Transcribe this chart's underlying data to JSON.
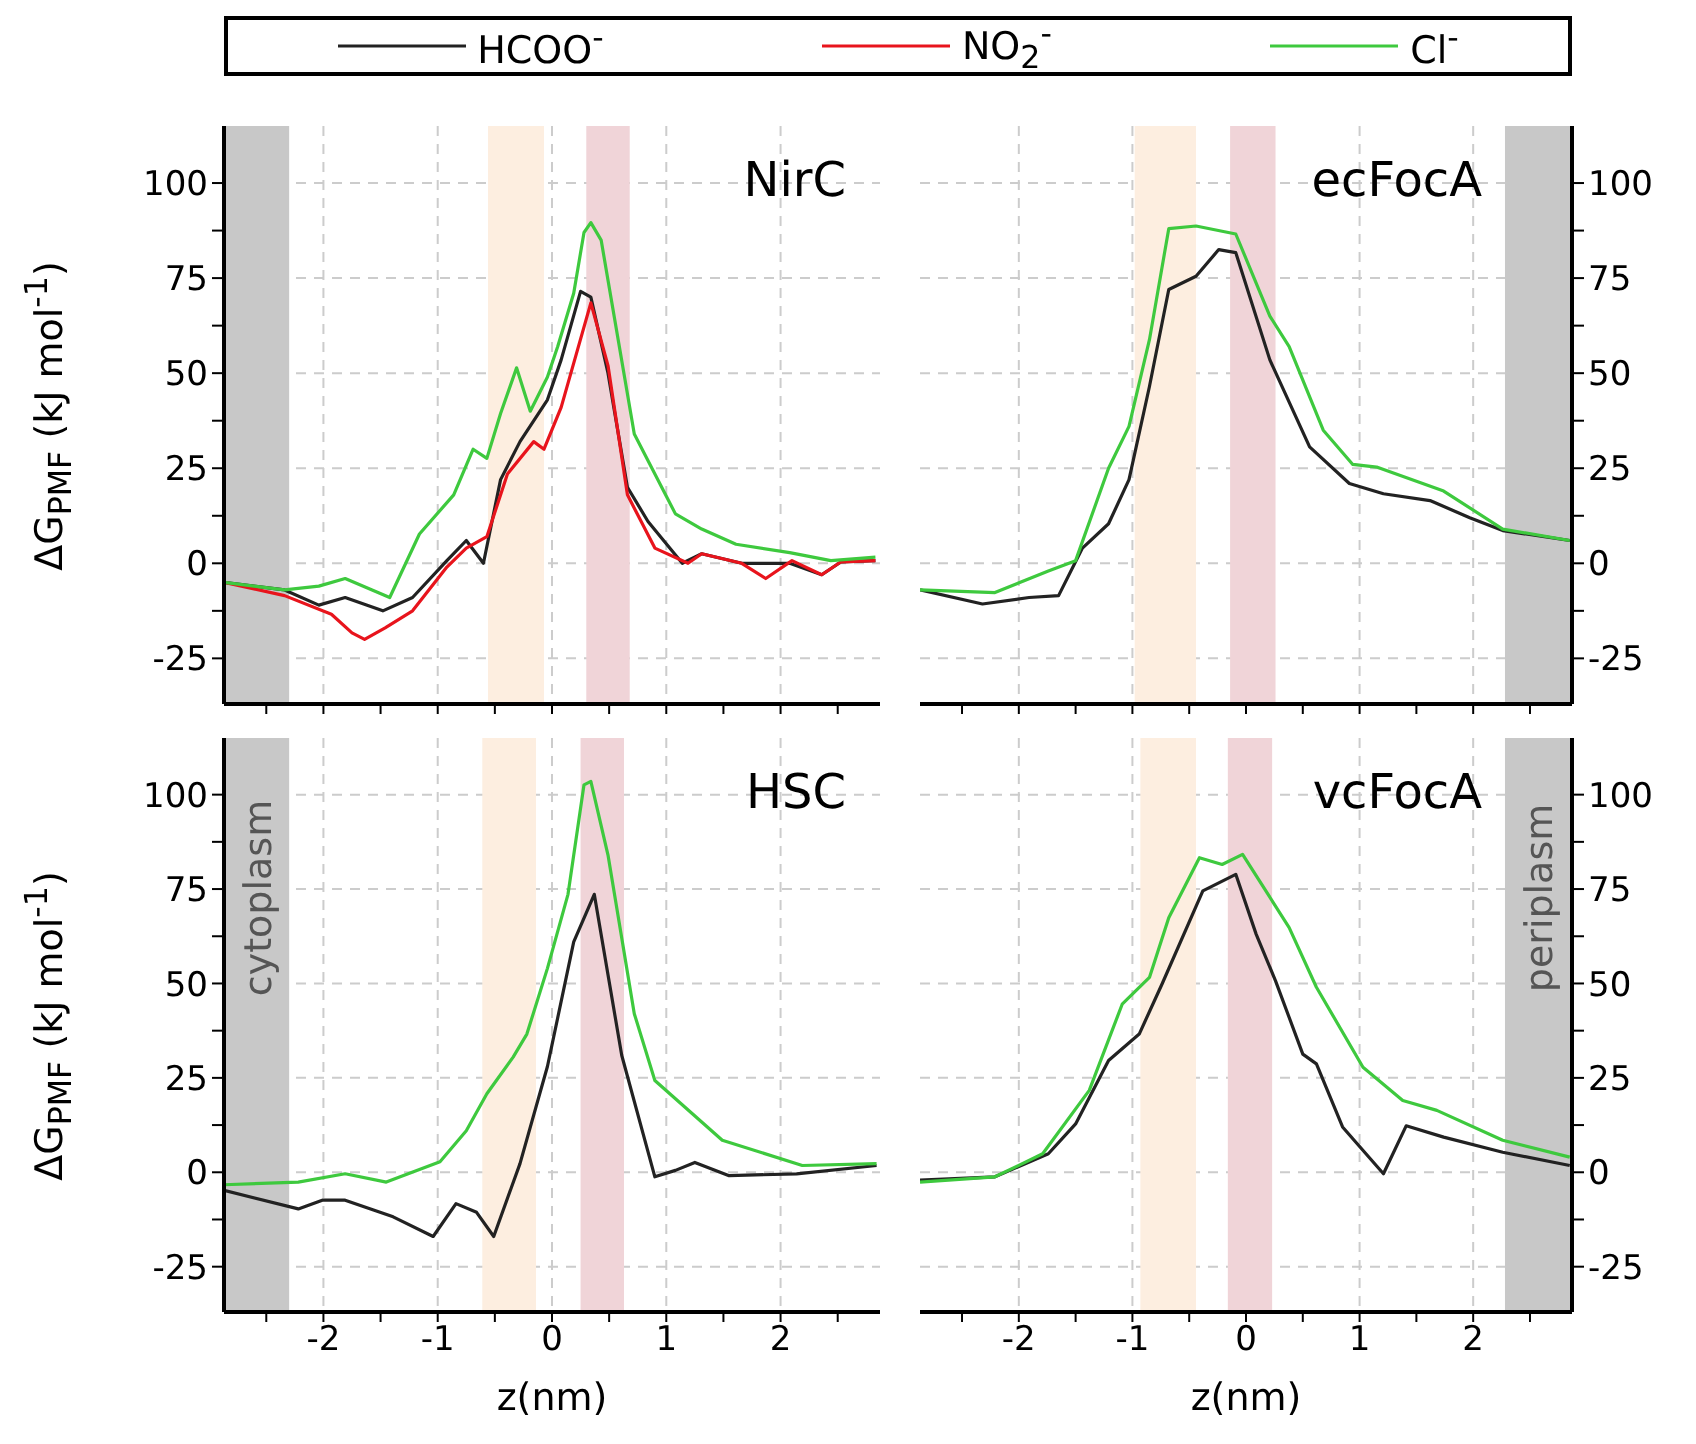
{
  "chart_data": [
    {
      "type": "line",
      "title": "NirC",
      "ylabel": "ΔG$_{PMF}$ (kJ mol$^{-1}$)",
      "legend": "top",
      "grid": true,
      "line_style": "solid",
      "marker": "none",
      "tick_labels": "y",
      "xlim": [
        -2.87,
        2.87
      ],
      "xticks": [
        {
          "value": -2.5,
          "label": null
        },
        -2,
        {
          "value": -1.5,
          "label": null
        },
        -1,
        {
          "value": -0.5,
          "label": null
        },
        0,
        {
          "value": 0.5,
          "label": null
        },
        1,
        {
          "value": 1.5,
          "label": null
        },
        2,
        {
          "value": 2.5,
          "label": null
        }
      ],
      "ylim": [
        -37,
        115
      ],
      "yticks": [
        -25,
        {
          "value": -12.5,
          "label": null
        },
        0,
        {
          "value": 12.5,
          "label": null
        },
        25,
        {
          "value": 37.5,
          "label": null
        },
        50,
        {
          "value": 62.5,
          "label": null
        },
        75,
        {
          "value": 87.5,
          "label": null
        },
        100
      ],
      "bands": [
        {
          "axis": "x",
          "from": -2.87,
          "to": -2.3,
          "color": "#c8c8c8"
        },
        {
          "axis": "x",
          "from": -0.56,
          "to": -0.07,
          "color": "#fdeee0"
        },
        {
          "axis": "x",
          "from": 0.3,
          "to": 0.68,
          "color": "#f0d4d8"
        }
      ],
      "series": [
        {
          "name": "HCOO$^{-}$",
          "color": "#222222",
          "x": [
            -2.87,
            -2.34,
            -2.04,
            -1.81,
            -1.48,
            -1.22,
            -0.92,
            -0.75,
            -0.6,
            -0.45,
            -0.28,
            -0.04,
            0.08,
            0.25,
            0.34,
            0.49,
            0.66,
            0.84,
            1.14,
            1.31,
            1.66,
            2.08,
            2.36,
            2.53,
            2.83
          ],
          "values": [
            -5,
            -7,
            -11,
            -9,
            -12.5,
            -9,
            0.7,
            6,
            0,
            22,
            32,
            43,
            53.5,
            71.5,
            70,
            50,
            20,
            11,
            0,
            2.5,
            0,
            0,
            -3,
            0.4,
            0.7
          ]
        },
        {
          "name": "NO$_{2}$$^{-}$",
          "color": "#e8141c",
          "x": [
            -2.87,
            -2.34,
            -1.93,
            -1.75,
            -1.64,
            -1.46,
            -1.22,
            -0.92,
            -0.75,
            -0.57,
            -0.39,
            -0.16,
            -0.07,
            0.08,
            0.34,
            0.49,
            0.66,
            0.9,
            1.19,
            1.31,
            1.66,
            1.87,
            2.1,
            2.36,
            2.53,
            2.83
          ],
          "values": [
            -5,
            -8.5,
            -13.4,
            -18.3,
            -20,
            -17,
            -12.5,
            -1,
            4,
            7,
            23.5,
            32,
            30,
            41,
            68.5,
            52,
            18,
            4,
            0,
            2.5,
            0,
            -4,
            0.7,
            -3,
            0.4,
            0.7
          ]
        },
        {
          "name": "Cl$^{-}$",
          "color": "#3ec93e",
          "x": [
            -2.87,
            -2.34,
            -2.04,
            -1.81,
            -1.42,
            -1.16,
            -0.86,
            -0.69,
            -0.57,
            -0.45,
            -0.31,
            -0.19,
            -0.04,
            0.05,
            0.19,
            0.28,
            0.34,
            0.43,
            0.72,
            1.08,
            1.31,
            1.61,
            2.08,
            2.44,
            2.83
          ],
          "values": [
            -5,
            -7,
            -6,
            -4,
            -9,
            7.7,
            18,
            30,
            27.6,
            39.4,
            51.4,
            40,
            49,
            57,
            71,
            87,
            89.6,
            85,
            34,
            13,
            9,
            5,
            2.8,
            0.7,
            1.6
          ]
        }
      ]
    },
    {
      "type": "line",
      "title": "ecFocA",
      "grid": true,
      "line_style": "solid",
      "marker": "none",
      "tick_labels": "y",
      "xlim": [
        -2.87,
        2.87
      ],
      "xticks": [
        {
          "value": -2.5,
          "label": null
        },
        -2,
        {
          "value": -1.5,
          "label": null
        },
        -1,
        {
          "value": -0.5,
          "label": null
        },
        0,
        {
          "value": 0.5,
          "label": null
        },
        1,
        {
          "value": 1.5,
          "label": null
        },
        2,
        {
          "value": 2.5,
          "label": null
        }
      ],
      "ylim": [
        -37,
        115
      ],
      "yticks": [
        -25,
        {
          "value": -12.5,
          "label": null
        },
        0,
        {
          "value": 12.5,
          "label": null
        },
        25,
        {
          "value": 37.5,
          "label": null
        },
        50,
        {
          "value": 62.5,
          "label": null
        },
        75,
        {
          "value": 87.5,
          "label": null
        },
        100
      ],
      "bands": [
        {
          "axis": "x",
          "from": 2.28,
          "to": 2.87,
          "color": "#c8c8c8"
        },
        {
          "axis": "x",
          "from": -0.98,
          "to": -0.44,
          "color": "#fdeee0"
        },
        {
          "axis": "x",
          "from": -0.14,
          "to": 0.26,
          "color": "#f0d4d8"
        }
      ],
      "series": [
        {
          "color": "#222222",
          "x": [
            -2.87,
            -2.32,
            -1.91,
            -1.65,
            -1.44,
            -1.21,
            -1.03,
            -0.85,
            -0.68,
            -0.44,
            -0.24,
            -0.09,
            0.21,
            0.56,
            0.91,
            1.21,
            1.62,
            1.97,
            2.26,
            2.85
          ],
          "values": [
            -7,
            -10.7,
            -9,
            -8.5,
            4,
            10.4,
            22,
            46.5,
            72,
            75.5,
            82.5,
            81.7,
            53.5,
            30.6,
            21,
            18.3,
            16.5,
            12,
            8.6,
            6
          ]
        },
        {
          "color": "#3ec93e",
          "x": [
            -2.87,
            -2.21,
            -1.74,
            -1.5,
            -1.21,
            -1.03,
            -0.85,
            -0.68,
            -0.44,
            -0.09,
            0.21,
            0.38,
            0.68,
            0.94,
            1.15,
            1.74,
            2.26,
            2.85
          ],
          "values": [
            -7,
            -7.7,
            -2,
            0.7,
            25,
            36,
            58.8,
            88,
            88.7,
            86.6,
            65,
            57,
            35,
            26,
            25.3,
            19,
            9,
            6
          ]
        }
      ]
    },
    {
      "type": "line",
      "title": "HSC",
      "ylabel": "ΔG$_{PMF}$ (kJ mol$^{-1}$)",
      "xlabel": "z(nm)",
      "grid": true,
      "line_style": "solid",
      "marker": "none",
      "xlim": [
        -2.87,
        2.87
      ],
      "xticks": [
        {
          "value": -2.5,
          "label": null
        },
        -2,
        {
          "value": -1.5,
          "label": null
        },
        -1,
        {
          "value": -0.5,
          "label": null
        },
        0,
        {
          "value": 0.5,
          "label": null
        },
        1,
        {
          "value": 1.5,
          "label": null
        },
        2,
        {
          "value": 2.5,
          "label": null
        }
      ],
      "ylim": [
        -37,
        115
      ],
      "yticks": [
        -25,
        {
          "value": -12.5,
          "label": null
        },
        0,
        {
          "value": 12.5,
          "label": null
        },
        25,
        {
          "value": 37.5,
          "label": null
        },
        50,
        {
          "value": 62.5,
          "label": null
        },
        75,
        {
          "value": 87.5,
          "label": null
        },
        100
      ],
      "bands": [
        {
          "axis": "x",
          "from": -2.87,
          "to": -2.3,
          "color": "#c8c8c8",
          "label": "cytoplasm"
        },
        {
          "axis": "x",
          "from": -0.61,
          "to": -0.14,
          "color": "#fdeee0"
        },
        {
          "axis": "x",
          "from": 0.25,
          "to": 0.63,
          "color": "#f0d4d8"
        }
      ],
      "series": [
        {
          "color": "#222222",
          "x": [
            -2.87,
            -2.22,
            -2.01,
            -1.81,
            -1.39,
            -1.04,
            -0.84,
            -0.66,
            -0.51,
            -0.28,
            -0.04,
            0.19,
            0.37,
            0.61,
            0.9,
            1.08,
            1.25,
            1.55,
            2.14,
            2.84
          ],
          "values": [
            -4.8,
            -9.7,
            -7.4,
            -7.4,
            -11.8,
            -17,
            -8.3,
            -10.6,
            -17,
            2.3,
            28,
            61,
            73.6,
            31,
            -1.2,
            0.5,
            2.6,
            -0.9,
            -0.4,
            1.8
          ]
        },
        {
          "color": "#3ec93e",
          "x": [
            -2.87,
            -2.22,
            -1.81,
            -1.45,
            -0.98,
            -0.75,
            -0.57,
            -0.34,
            -0.22,
            -0.04,
            0.14,
            0.28,
            0.34,
            0.49,
            0.72,
            0.9,
            1.49,
            2.19,
            2.84
          ],
          "values": [
            -3.3,
            -2.6,
            -0.4,
            -2.6,
            2.8,
            11,
            20.8,
            30.5,
            36.6,
            54,
            73.6,
            102.6,
            103.5,
            84,
            42,
            24.3,
            8.5,
            1.8,
            2.3
          ]
        }
      ]
    },
    {
      "type": "line",
      "title": "vcFocA",
      "xlabel": "z(nm)",
      "grid": true,
      "line_style": "solid",
      "marker": "none",
      "xlim": [
        -2.87,
        2.87
      ],
      "xticks": [
        {
          "value": -2.5,
          "label": null
        },
        -2,
        {
          "value": -1.5,
          "label": null
        },
        -1,
        {
          "value": -0.5,
          "label": null
        },
        0,
        {
          "value": 0.5,
          "label": null
        },
        1,
        {
          "value": 1.5,
          "label": null
        },
        2,
        {
          "value": 2.5,
          "label": null
        }
      ],
      "ylim": [
        -37,
        115
      ],
      "yticks": [
        -25,
        {
          "value": -12.5,
          "label": null
        },
        0,
        {
          "value": 12.5,
          "label": null
        },
        25,
        {
          "value": 37.5,
          "label": null
        },
        50,
        {
          "value": 62.5,
          "label": null
        },
        75,
        {
          "value": 87.5,
          "label": null
        },
        100
      ],
      "bands": [
        {
          "axis": "x",
          "from": 2.28,
          "to": 2.87,
          "color": "#c8c8c8",
          "label": "periplasm"
        },
        {
          "axis": "x",
          "from": -0.93,
          "to": -0.44,
          "color": "#fdeee0"
        },
        {
          "axis": "x",
          "from": -0.16,
          "to": 0.23,
          "color": "#f0d4d8"
        }
      ],
      "series": [
        {
          "color": "#222222",
          "x": [
            -2.87,
            -2.21,
            -1.74,
            -1.5,
            -1.21,
            -0.94,
            -0.74,
            -0.38,
            -0.09,
            0.09,
            0.26,
            0.5,
            0.62,
            0.85,
            1.21,
            1.41,
            1.74,
            2.26,
            2.85
          ],
          "values": [
            -2.1,
            -1.2,
            4.9,
            12.8,
            29.6,
            36.6,
            49.8,
            74.5,
            78.9,
            63,
            50.7,
            31.3,
            28.7,
            12,
            -0.4,
            12.3,
            9.3,
            5.3,
            1.8
          ]
        },
        {
          "color": "#3ec93e",
          "x": [
            -2.87,
            -2.21,
            -1.79,
            -1.38,
            -1.09,
            -0.85,
            -0.68,
            -0.41,
            -0.21,
            -0.03,
            0.38,
            0.62,
            1.03,
            1.38,
            1.68,
            2.26,
            2.85
          ],
          "values": [
            -2.6,
            -1.2,
            4.9,
            21.7,
            44.5,
            51.6,
            67.4,
            83.3,
            81.5,
            84.2,
            64.8,
            49,
            27.8,
            19,
            16.4,
            8.5,
            4
          ]
        }
      ]
    }
  ]
}
